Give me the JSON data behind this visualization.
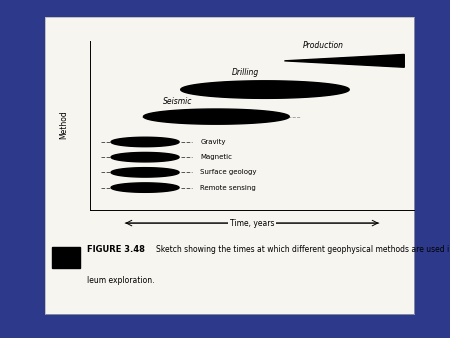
{
  "bg_outer": "#2d3a8c",
  "bg_inner": "#f7f5f0",
  "title_text": "FIGURE 3.48",
  "caption_line1": "Sketch showing the times at which different geophysical methods are used in petro-",
  "caption_line2": "leum exploration.",
  "xlabel": "Time, years",
  "ylabel": "Method",
  "methods_legend": [
    "Gravity",
    "Magnetic",
    "Surface geology",
    "Remote sensing"
  ],
  "seismic_label": "Seismic",
  "drilling_label": "Drilling",
  "production_label": "Production"
}
